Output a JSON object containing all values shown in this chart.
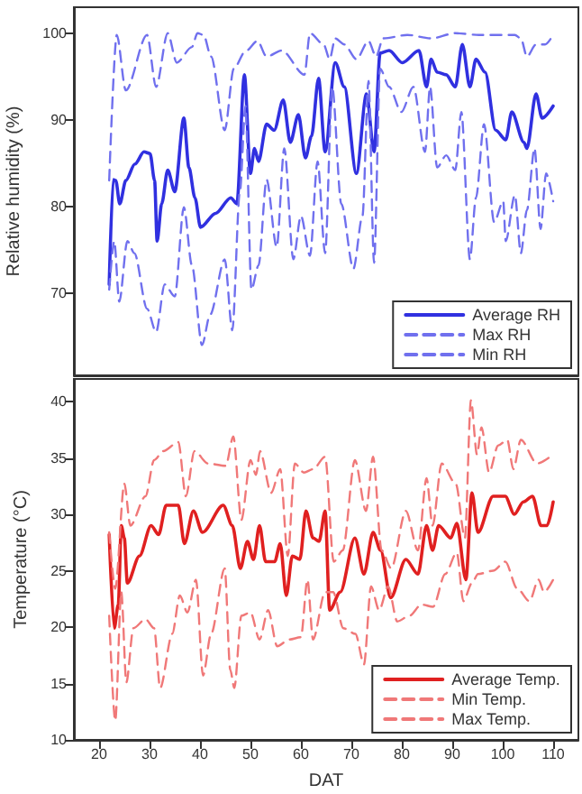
{
  "chart_data": [
    {
      "type": "line",
      "ylabel": "Relative humidity (%)",
      "xlim": [
        15,
        115
      ],
      "ylim": [
        60.5,
        103
      ],
      "yticks": [
        70,
        80,
        90,
        100
      ],
      "tick_labels": "y",
      "grid": false,
      "legend": "bottom right",
      "marker": "none",
      "series": [
        {
          "name": "Average RH",
          "color": "#3030e0",
          "line_style": "solid",
          "x": [
            22,
            22.8,
            23.3,
            24.1,
            25.3,
            27.1,
            28.9,
            30.1,
            31,
            31.5,
            32.4,
            33.6,
            35,
            36.8,
            37.8,
            39,
            40.1,
            43.1,
            46.1,
            47.3,
            48.8,
            50,
            50.8,
            51.6,
            53.2,
            54.7,
            56.5,
            57.9,
            59.5,
            60.9,
            62.1,
            63.5,
            64.8,
            66.8,
            68.6,
            71,
            73,
            74.5,
            75.7,
            77.5,
            80.1,
            83.4,
            84.9,
            85.8,
            87,
            88.8,
            90.6,
            92,
            93.5,
            94.7,
            96.5,
            98.6,
            100.6,
            101.8,
            104.2,
            104.8,
            106.6,
            107.8,
            110
          ],
          "values": [
            71,
            83.1,
            83,
            80.3,
            83,
            84.9,
            86.3,
            86.1,
            83,
            76,
            80.3,
            84.2,
            81.7,
            90.2,
            84.5,
            81,
            77.6,
            79.2,
            81,
            80.3,
            95.2,
            83.8,
            86.7,
            85.2,
            89.5,
            88.8,
            92.3,
            87.4,
            90.6,
            85.6,
            88.1,
            94.8,
            86.3,
            96.6,
            93.8,
            83.8,
            93,
            86.3,
            97.7,
            98,
            96.6,
            98,
            93.8,
            97,
            95.5,
            95.2,
            93.8,
            98.7,
            93.8,
            97,
            95.5,
            88.8,
            87.7,
            90.9,
            87.4,
            86.7,
            93,
            90.2,
            91.6
          ]
        },
        {
          "name": "Max RH",
          "color": "#7070ee",
          "line_style": "dashed",
          "x": [
            22,
            23.5,
            25.3,
            29.5,
            31.3,
            33.6,
            35.4,
            38.4,
            39.5,
            40.7,
            42.2,
            44.9,
            46.7,
            49,
            51.4,
            53.2,
            56.2,
            60.7,
            61.8,
            64.5,
            65.7,
            66.8,
            68.6,
            71,
            73.4,
            74.9,
            76.3,
            81.1,
            85.8,
            90.6,
            95.3,
            102.4,
            103.6,
            104.8,
            106.6,
            108.4,
            110
          ],
          "values": [
            83,
            99.8,
            93.4,
            99.8,
            93.8,
            100,
            96.6,
            98.4,
            100,
            99.8,
            97.3,
            88.8,
            95.9,
            97.9,
            99.1,
            97.3,
            98,
            95.2,
            100,
            98.7,
            97,
            99.4,
            98.7,
            97,
            99.1,
            97.3,
            99.4,
            99.8,
            99.4,
            100,
            99.8,
            99.8,
            99.4,
            97.3,
            98.7,
            98.7,
            99.8
          ]
        },
        {
          "name": "Min RH",
          "color": "#7070ee",
          "line_style": "dashed",
          "x": [
            22,
            23,
            24,
            25.6,
            27,
            29.5,
            31.3,
            33,
            35,
            36.8,
            38.4,
            40.4,
            42,
            44.9,
            46.4,
            47.9,
            49,
            50.2,
            51.6,
            53.2,
            55.2,
            56.7,
            58.5,
            60,
            61.8,
            63.3,
            64.8,
            66.2,
            68,
            70.4,
            72.2,
            73.4,
            74.5,
            75.7,
            77.5,
            79.9,
            82.3,
            84.6,
            85.6,
            87,
            88.8,
            90.6,
            91.8,
            93.5,
            94.7,
            96.3,
            98.3,
            100.1,
            100.6,
            102.4,
            103.6,
            104.8,
            106.3,
            107.5,
            108.6,
            110
          ],
          "values": [
            70.4,
            76,
            69,
            76,
            74.6,
            68.2,
            65.5,
            71,
            69.6,
            79.9,
            73.2,
            64,
            67.5,
            73.9,
            65.7,
            81.7,
            91.6,
            70.4,
            73.2,
            83.1,
            75.3,
            86.7,
            73.9,
            78.9,
            74.3,
            85.2,
            74.6,
            93.8,
            80.3,
            72.8,
            78.9,
            94.5,
            73.5,
            95.9,
            93.8,
            90.9,
            93.8,
            86.3,
            93.8,
            84.5,
            85.9,
            84.2,
            90.9,
            73.9,
            81,
            89.5,
            78.2,
            80.6,
            76,
            81.3,
            74.6,
            79.6,
            86.7,
            77.4,
            83.8,
            80.6
          ]
        }
      ]
    },
    {
      "type": "line",
      "xlabel": "DAT",
      "ylabel": "Temperature (°C)",
      "xlim": [
        15,
        115
      ],
      "xticks": [
        20,
        30,
        40,
        50,
        60,
        70,
        80,
        90,
        100,
        110
      ],
      "ylim": [
        10,
        42
      ],
      "yticks": [
        10,
        15,
        20,
        25,
        30,
        35,
        40
      ],
      "grid": false,
      "legend": "bottom right",
      "marker": "none",
      "series": [
        {
          "name": "Average Temp.",
          "color": "#e02020",
          "line_style": "solid",
          "x": [
            22,
            23,
            23.8,
            24.4,
            25,
            25.6,
            28,
            30.3,
            31.8,
            33.3,
            35.7,
            36.9,
            38.7,
            40.5,
            44.6,
            46.4,
            48,
            49.4,
            50.6,
            51.8,
            53,
            54.8,
            55.9,
            57.1,
            58.3,
            59.8,
            61,
            62.4,
            63.6,
            64.8,
            65.7,
            67.8,
            70.7,
            72.5,
            74.3,
            75.8,
            77.8,
            80.8,
            83.2,
            84.9,
            86.1,
            87.3,
            89.7,
            90.9,
            92.7,
            93.9,
            95.1,
            98.1,
            100.5,
            102.3,
            104.1,
            105.9,
            107.6,
            108.8,
            110
          ],
          "values": [
            28.2,
            19.9,
            22,
            29,
            27.9,
            23.9,
            26.3,
            29,
            28.2,
            30.8,
            30.8,
            27.4,
            30.3,
            28.4,
            30.8,
            29,
            25.2,
            27.6,
            26,
            29,
            25.8,
            25.8,
            27.4,
            22.8,
            26.3,
            26,
            30.3,
            27.9,
            27.6,
            30.3,
            21.5,
            23.1,
            27.9,
            24.7,
            28.4,
            26.8,
            22.6,
            26,
            24.7,
            29,
            26.8,
            29,
            27.9,
            29.2,
            24.2,
            31.9,
            28.4,
            31.6,
            31.6,
            30,
            31.1,
            31.6,
            29,
            29,
            31.1
          ]
        },
        {
          "name": "Min Temp.",
          "color": "#f07878",
          "line_style": "dashed",
          "x": [
            22,
            23.2,
            24.4,
            25.4,
            26.8,
            29.2,
            30.9,
            32.1,
            34.5,
            36,
            37.5,
            39.2,
            40.6,
            42.2,
            44.9,
            46,
            46.8,
            48.2,
            50,
            51.8,
            53.5,
            55.3,
            57.7,
            60,
            61.3,
            62.4,
            64.8,
            66.4,
            68.4,
            70.8,
            72.5,
            73.9,
            75.5,
            77.3,
            79.1,
            81.5,
            83.9,
            86.2,
            88.6,
            90.9,
            92.2,
            93.9,
            95.1,
            98.1,
            100.5,
            102.9,
            105.3,
            107.1,
            108.2,
            110
          ],
          "values": [
            21,
            11.7,
            23.1,
            15.1,
            19.9,
            20.7,
            19.9,
            14.6,
            19.4,
            22.8,
            21.3,
            24.2,
            15.7,
            19.4,
            25.2,
            16.2,
            14.6,
            21,
            21.3,
            18.9,
            21.5,
            18.3,
            18.9,
            19.1,
            24.2,
            18.9,
            23.1,
            23.1,
            19.9,
            19.4,
            16.7,
            23.6,
            21.5,
            23.6,
            20.5,
            21,
            22,
            21.8,
            24.7,
            26.6,
            22.3,
            23.9,
            24.7,
            25,
            25.8,
            23.4,
            22.3,
            24.2,
            23.1,
            24.2
          ]
        },
        {
          "name": "Max Temp.",
          "color": "#f07878",
          "line_style": "dashed",
          "x": [
            22,
            23.2,
            25,
            26.2,
            29.2,
            30.9,
            32.7,
            35.7,
            37.2,
            38.9,
            41.6,
            45.1,
            46.6,
            48.2,
            50,
            51.1,
            51.9,
            54.1,
            55.9,
            57.4,
            58.8,
            60.6,
            62.4,
            64.8,
            66.5,
            68.3,
            70.7,
            72.9,
            74.3,
            76,
            77.9,
            80.8,
            83.2,
            84.9,
            86.1,
            87.9,
            90.7,
            92.5,
            93.7,
            94.9,
            95.8,
            97.3,
            99.1,
            100.9,
            102.1,
            103.6,
            106.8,
            110
          ],
          "values": [
            28.4,
            23.4,
            32.7,
            29,
            31.6,
            34.8,
            35.6,
            36.4,
            31.6,
            35.6,
            34.5,
            34.3,
            36.9,
            29.5,
            34.8,
            33.5,
            35.6,
            31.9,
            34,
            26.3,
            34.5,
            33.7,
            34,
            35.1,
            25.8,
            26.8,
            34.8,
            30.3,
            35.1,
            26.8,
            25.2,
            30.3,
            26.8,
            33.2,
            29,
            34.5,
            32.7,
            27.9,
            40.1,
            35.3,
            37.7,
            33.7,
            36.1,
            36.6,
            34,
            36.6,
            34.5,
            35.3
          ]
        }
      ]
    }
  ]
}
